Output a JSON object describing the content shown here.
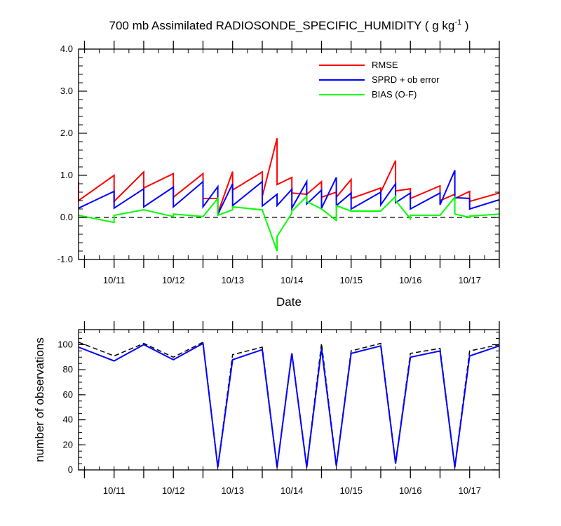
{
  "chart_data": [
    {
      "type": "line",
      "title": "700 mb Assimilated RADIOSONDE_SPECIFIC_HUMIDITY ( g kg",
      "title_superscript": "-1",
      "title_suffix": " )",
      "xlabel": "Date",
      "ylabel": "",
      "xlim": [
        10.4,
        17.5
      ],
      "ylim": [
        -1.0,
        4.0
      ],
      "y_ticks": [
        -1.0,
        0.0,
        1.0,
        2.0,
        3.0,
        4.0
      ],
      "y_tick_labels": [
        "-1.0",
        "0.0",
        "1.0",
        "2.0",
        "3.0",
        "4.0"
      ],
      "x_ticks": [
        11,
        12,
        13,
        14,
        15,
        16,
        17
      ],
      "x_tick_labels": [
        "10/11",
        "10/12",
        "10/13",
        "10/14",
        "10/15",
        "10/16",
        "10/17"
      ],
      "zero_line": true,
      "legend_position": "top-right",
      "series": [
        {
          "name": "RMSE",
          "color": "#ff0000",
          "x": [
            10.4,
            10.4,
            11.0,
            11.0,
            11.5,
            11.5,
            12.0,
            12.0,
            12.5,
            12.5,
            12.75,
            12.75,
            13.0,
            13.0,
            13.5,
            13.5,
            13.75,
            13.75,
            14.0,
            14.0,
            14.25,
            14.25,
            14.5,
            14.5,
            14.75,
            14.75,
            15.0,
            15.0,
            15.5,
            15.5,
            15.75,
            15.75,
            16.0,
            16.0,
            16.5,
            16.5,
            16.75,
            16.75,
            17.0,
            17.0,
            17.5
          ],
          "y": [
            0.85,
            0.4,
            1.0,
            0.38,
            1.08,
            0.7,
            1.04,
            0.48,
            1.04,
            0.45,
            0.45,
            0.1,
            1.09,
            0.65,
            1.08,
            0.5,
            1.88,
            0.78,
            0.95,
            0.58,
            0.55,
            0.55,
            0.85,
            0.48,
            0.6,
            0.48,
            0.9,
            0.45,
            0.7,
            0.6,
            1.35,
            0.63,
            0.68,
            0.45,
            0.75,
            0.4,
            0.55,
            0.45,
            0.62,
            0.38,
            0.58
          ]
        },
        {
          "name": "SPRD + ob error",
          "color": "#0000ff",
          "x": [
            10.4,
            11.0,
            11.0,
            11.5,
            11.5,
            12.0,
            12.0,
            12.5,
            12.5,
            12.75,
            12.75,
            13.0,
            13.0,
            13.5,
            13.5,
            13.75,
            13.75,
            14.0,
            14.0,
            14.25,
            14.25,
            14.5,
            14.5,
            14.75,
            14.75,
            15.0,
            15.0,
            15.5,
            15.5,
            15.75,
            15.75,
            16.0,
            16.0,
            16.5,
            16.5,
            16.75,
            16.75,
            17.0,
            17.0,
            17.5
          ],
          "y": [
            0.22,
            0.62,
            0.22,
            0.68,
            0.25,
            0.72,
            0.25,
            0.85,
            0.25,
            0.73,
            0.07,
            0.8,
            0.28,
            0.85,
            0.27,
            0.55,
            0.28,
            0.67,
            0.22,
            0.85,
            0.32,
            0.65,
            0.22,
            0.95,
            0.28,
            0.58,
            0.2,
            0.6,
            0.3,
            0.8,
            0.35,
            0.58,
            0.2,
            0.58,
            0.3,
            1.12,
            0.47,
            0.45,
            0.2,
            0.42
          ]
        },
        {
          "name": "BIAS (O-F)",
          "color": "#00ff00",
          "x": [
            10.4,
            11.0,
            11.0,
            11.5,
            12.0,
            12.0,
            12.5,
            12.75,
            12.75,
            13.0,
            13.0,
            13.5,
            13.75,
            13.75,
            14.0,
            14.0,
            14.25,
            14.25,
            14.5,
            14.75,
            14.75,
            15.0,
            15.0,
            15.5,
            15.75,
            15.75,
            16.0,
            16.0,
            16.5,
            16.75,
            16.75,
            17.0,
            17.0,
            17.5
          ],
          "y": [
            0.05,
            -0.12,
            0.05,
            0.18,
            0.02,
            0.08,
            0.02,
            0.45,
            0.05,
            0.18,
            0.25,
            0.18,
            -0.8,
            -0.45,
            0.1,
            0.15,
            0.5,
            0.38,
            0.2,
            -0.07,
            0.28,
            0.15,
            0.15,
            0.15,
            0.5,
            0.4,
            -0.03,
            0.05,
            0.05,
            0.48,
            0.08,
            0.0,
            0.03,
            0.08
          ]
        }
      ]
    },
    {
      "type": "line",
      "title": "",
      "xlabel": "",
      "ylabel": "number of observations",
      "xlim": [
        10.4,
        17.5
      ],
      "ylim": [
        0,
        112
      ],
      "y_ticks": [
        0,
        20,
        40,
        60,
        80,
        100
      ],
      "y_tick_labels": [
        "0",
        "20",
        "40",
        "60",
        "80",
        "100"
      ],
      "x_ticks": [
        11,
        12,
        13,
        14,
        15,
        16,
        17
      ],
      "x_tick_labels": [
        "10/11",
        "10/12",
        "10/13",
        "10/14",
        "10/15",
        "10/16",
        "10/17"
      ],
      "series": [
        {
          "color": "#000000",
          "dashed": true,
          "x": [
            10.4,
            11.0,
            11.5,
            12.0,
            12.5,
            12.75,
            13.0,
            13.5,
            13.75,
            14.0,
            14.25,
            14.5,
            14.75,
            15.0,
            15.5,
            15.75,
            16.0,
            16.5,
            16.75,
            17.0,
            17.5
          ],
          "y": [
            102,
            91,
            101,
            90,
            102,
            3,
            92,
            98,
            3,
            94,
            3,
            101,
            4,
            95,
            101,
            6,
            93,
            97,
            3,
            95,
            100
          ]
        },
        {
          "color": "#0000ff",
          "dashed": false,
          "x": [
            10.4,
            11.0,
            11.5,
            12.0,
            12.5,
            12.75,
            13.0,
            13.5,
            13.75,
            14.0,
            14.25,
            14.5,
            14.75,
            15.0,
            15.5,
            15.75,
            16.0,
            16.5,
            16.75,
            17.0,
            17.5
          ],
          "y": [
            98,
            87,
            100,
            88,
            101,
            2,
            88,
            96,
            2,
            93,
            2,
            97,
            3,
            93,
            99,
            5,
            90,
            95,
            2,
            91,
            99
          ]
        }
      ]
    }
  ]
}
